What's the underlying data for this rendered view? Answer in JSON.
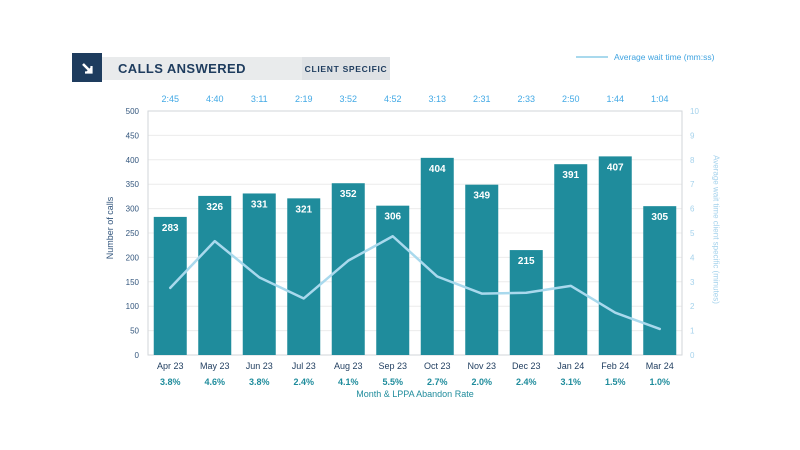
{
  "header": {
    "title": "CALLS ANSWERED",
    "client_label": "CLIENT SPECIFIC",
    "icon": "arrow-down-right"
  },
  "legend": {
    "label": "Average wait time (mm:ss)"
  },
  "colors": {
    "navy": "#1e3c5e",
    "teal": "#1f8c9c",
    "line_pale_blue": "#a9d9ed",
    "sky_blue": "#43a9e5",
    "left_tick": "#33567d",
    "right_tick": "#a5d2ec",
    "grid": "#ececec",
    "plot_border": "#d2d6da",
    "bar_label": "#ffffff"
  },
  "chart_data": {
    "type": "bar+line",
    "title": "CALLS ANSWERED",
    "categories": [
      "Apr 23",
      "May 23",
      "Jun 23",
      "Jul 23",
      "Aug 23",
      "Sep 23",
      "Oct 23",
      "Nov 23",
      "Dec 23",
      "Jan 24",
      "Feb 24",
      "Mar 24"
    ],
    "series": [
      {
        "name": "Calls answered",
        "type": "bar",
        "values": [
          283,
          326,
          331,
          321,
          352,
          306,
          404,
          349,
          215,
          391,
          407,
          305
        ]
      },
      {
        "name": "Average wait time (mm:ss)",
        "type": "line",
        "values_mmss": [
          "2:45",
          "4:40",
          "3:11",
          "2:19",
          "3:52",
          "4:52",
          "3:13",
          "2:31",
          "2:33",
          "2:50",
          "1:44",
          "1:04"
        ]
      }
    ],
    "abandon_rate": [
      "3.8%",
      "4.6%",
      "3.8%",
      "2.4%",
      "4.1%",
      "5.5%",
      "2.7%",
      "2.0%",
      "2.4%",
      "3.1%",
      "1.5%",
      "1.0%"
    ],
    "left_axis": {
      "label": "Number of calls",
      "min": 0,
      "max": 500,
      "step": 50
    },
    "right_axis": {
      "label": "Average wait time client specific (minutes)",
      "min": 0,
      "max": 10,
      "step": 1
    },
    "x_axis_label": "Month & LPPA Abandon Rate",
    "grid": true,
    "legend_position": "top-right"
  }
}
